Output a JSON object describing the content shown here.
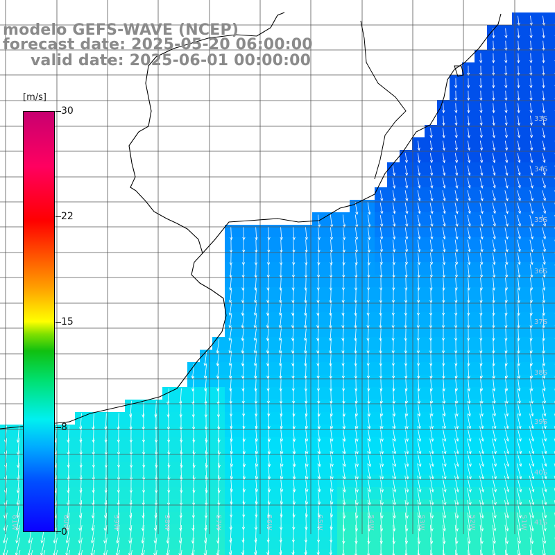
{
  "title": {
    "line1": "modelo GEFS-WAVE (NCEP)",
    "line2": "forecast date: 2025-05-20 06:00:00",
    "line3": "valid date: 2025-06-01 00:00:00"
  },
  "colorbar": {
    "unit": "[m/s]",
    "ticks": [
      {
        "label": "30",
        "value": 30
      },
      {
        "label": "22",
        "value": 22
      },
      {
        "label": "15",
        "value": 15
      },
      {
        "label": "8",
        "value": 8
      },
      {
        "label": "0",
        "value": 0
      }
    ]
  },
  "grid_labels": {
    "lat": [
      "33S",
      "34S",
      "35S",
      "36S",
      "37S",
      "38S",
      "39S",
      "40S",
      "41S"
    ],
    "lon": [
      "61W",
      "60W",
      "59W",
      "58W",
      "57W",
      "56W",
      "55W",
      "54W",
      "53W",
      "52W",
      "51W"
    ]
  },
  "colors": {
    "land": "#ffffff",
    "gridline": "#555555",
    "coast": "#000000",
    "arrow": "#ffffff",
    "title": "#8a8a8a"
  }
}
